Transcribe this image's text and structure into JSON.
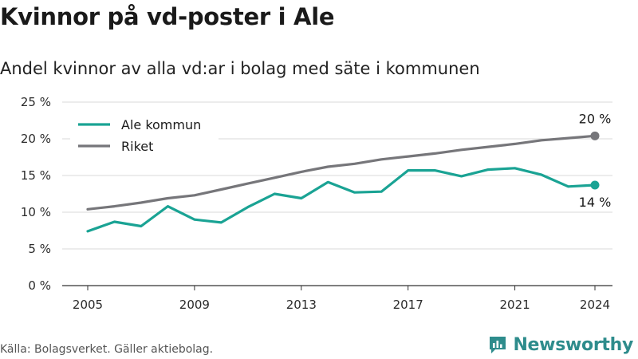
{
  "header": {
    "title": "Kvinnor på vd-poster i Ale",
    "subtitle": "Andel kvinnor av alla vd:ar i bolag med säte i kommunen"
  },
  "footer": {
    "source": "Källa: Bolagsverket. Gäller aktiebolag.",
    "brand": "Newsworthy"
  },
  "colors": {
    "ale": "#1aa394",
    "riket": "#76767a",
    "grid": "#d9d9d9",
    "brand": "#2e8c8c"
  },
  "chart_data": {
    "type": "line",
    "x": [
      2005,
      2006,
      2007,
      2008,
      2009,
      2010,
      2011,
      2012,
      2013,
      2014,
      2015,
      2016,
      2017,
      2018,
      2019,
      2020,
      2021,
      2022,
      2023,
      2024
    ],
    "x_ticks": [
      "2005",
      "2009",
      "2013",
      "2017",
      "2021",
      "2024"
    ],
    "y_ticks": [
      "0 %",
      "5 %",
      "10 %",
      "15 %",
      "20 %",
      "25 %"
    ],
    "ylim": [
      0,
      25
    ],
    "legend_position": "top-left",
    "grid": true,
    "series": [
      {
        "name": "Ale kommun",
        "color": "#1aa394",
        "end_label": "14 %",
        "values": [
          7.4,
          8.7,
          8.1,
          10.8,
          9.0,
          8.6,
          10.7,
          12.5,
          11.9,
          14.1,
          12.7,
          12.8,
          15.7,
          15.7,
          14.9,
          15.8,
          16.0,
          15.1,
          13.5,
          13.7
        ]
      },
      {
        "name": "Riket",
        "color": "#76767a",
        "end_label": "20 %",
        "values": [
          10.4,
          10.8,
          11.3,
          11.9,
          12.3,
          13.1,
          13.9,
          14.7,
          15.5,
          16.2,
          16.6,
          17.2,
          17.6,
          18.0,
          18.5,
          18.9,
          19.3,
          19.8,
          20.1,
          20.4
        ]
      }
    ]
  }
}
